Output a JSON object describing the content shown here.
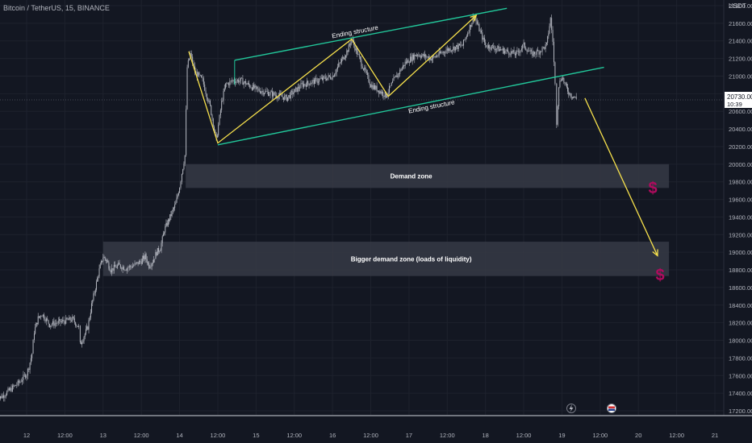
{
  "header": {
    "symbol": "Bitcoin / TetherUS, 15, BINANCE"
  },
  "chart_data": {
    "type": "candlestick",
    "currency": "USDT",
    "ylim": [
      17150,
      22000
    ],
    "y_ticks": [
      17200,
      17400,
      17600,
      17800,
      18000,
      18200,
      18400,
      18600,
      18800,
      19000,
      19200,
      19400,
      19600,
      19800,
      20000,
      20200,
      20400,
      20600,
      20800,
      21000,
      21200,
      21400,
      21600,
      21800
    ],
    "x_tick_labels": [
      "12",
      "12:00",
      "13",
      "12:00",
      "14",
      "12:00",
      "15",
      "12:00",
      "16",
      "12:00",
      "17",
      "12:00",
      "18",
      "12:00",
      "19",
      "12:00",
      "20",
      "12:00",
      "21"
    ],
    "x_range_days": [
      11.6,
      21.1
    ],
    "price_label": {
      "value": "20730.00",
      "countdown": "10:39"
    },
    "last_price": 20730,
    "price_path": [
      [
        11.6,
        17320
      ],
      [
        11.7,
        17380
      ],
      [
        11.8,
        17450
      ],
      [
        11.9,
        17520
      ],
      [
        12.0,
        17620
      ],
      [
        12.03,
        17700
      ],
      [
        12.07,
        17850
      ],
      [
        12.1,
        18100
      ],
      [
        12.15,
        18250
      ],
      [
        12.2,
        18300
      ],
      [
        12.3,
        18180
      ],
      [
        12.4,
        18200
      ],
      [
        12.5,
        18220
      ],
      [
        12.6,
        18240
      ],
      [
        12.68,
        18150
      ],
      [
        12.7,
        17950
      ],
      [
        12.75,
        18050
      ],
      [
        12.8,
        18150
      ],
      [
        12.85,
        18400
      ],
      [
        12.9,
        18600
      ],
      [
        12.95,
        18800
      ],
      [
        13.0,
        18950
      ],
      [
        13.05,
        18900
      ],
      [
        13.1,
        18800
      ],
      [
        13.2,
        18850
      ],
      [
        13.3,
        18820
      ],
      [
        13.4,
        18850
      ],
      [
        13.5,
        18900
      ],
      [
        13.55,
        18950
      ],
      [
        13.6,
        18850
      ],
      [
        13.65,
        18900
      ],
      [
        13.7,
        19000
      ],
      [
        13.75,
        19050
      ],
      [
        13.8,
        19250
      ],
      [
        13.85,
        19350
      ],
      [
        13.9,
        19450
      ],
      [
        13.95,
        19550
      ],
      [
        14.0,
        19750
      ],
      [
        14.03,
        19900
      ],
      [
        14.07,
        20100
      ],
      [
        14.1,
        21100
      ],
      [
        14.14,
        21250
      ],
      [
        14.2,
        21050
      ],
      [
        14.3,
        20950
      ],
      [
        14.4,
        20650
      ],
      [
        14.48,
        20270
      ],
      [
        14.55,
        20700
      ],
      [
        14.6,
        20900
      ],
      [
        14.7,
        20950
      ],
      [
        14.8,
        20950
      ],
      [
        15.0,
        20850
      ],
      [
        15.2,
        20800
      ],
      [
        15.4,
        20750
      ],
      [
        15.6,
        20900
      ],
      [
        15.8,
        20950
      ],
      [
        16.0,
        21000
      ],
      [
        16.2,
        21300
      ],
      [
        16.25,
        21420
      ],
      [
        16.35,
        21200
      ],
      [
        16.5,
        20900
      ],
      [
        16.7,
        20780
      ],
      [
        16.8,
        20950
      ],
      [
        16.95,
        21150
      ],
      [
        17.1,
        21250
      ],
      [
        17.3,
        21200
      ],
      [
        17.5,
        21300
      ],
      [
        17.7,
        21350
      ],
      [
        17.85,
        21680
      ],
      [
        18.0,
        21350
      ],
      [
        18.2,
        21300
      ],
      [
        18.4,
        21250
      ],
      [
        18.5,
        21350
      ],
      [
        18.6,
        21250
      ],
      [
        18.7,
        21280
      ],
      [
        18.8,
        21350
      ],
      [
        18.85,
        21650
      ],
      [
        18.88,
        21400
      ],
      [
        18.91,
        20900
      ],
      [
        18.93,
        20480
      ],
      [
        18.96,
        20900
      ],
      [
        19.0,
        21000
      ],
      [
        19.05,
        20880
      ],
      [
        19.1,
        20800
      ],
      [
        19.15,
        20770
      ],
      [
        19.2,
        20730
      ]
    ],
    "zones": [
      {
        "label": "Demand zone",
        "y_low": 19730,
        "y_high": 20000,
        "x_start": 14.08,
        "x_end": 20.4
      },
      {
        "label": "Bigger demand zone (loads of liquidity)",
        "y_low": 18730,
        "y_high": 19120,
        "x_start": 13.0,
        "x_end": 20.4
      }
    ],
    "channel_lines": [
      {
        "label": "Ending structure",
        "from": [
          14.72,
          21180
        ],
        "to": [
          18.28,
          21770
        ],
        "label_at": [
          16.3,
          21480
        ]
      },
      {
        "label": "Ending structure",
        "from": [
          14.5,
          20220
        ],
        "to": [
          19.55,
          21100
        ],
        "label_at": [
          17.3,
          20630
        ]
      }
    ],
    "zigzag": [
      [
        14.12,
        21280
      ],
      [
        14.5,
        20240
      ],
      [
        16.25,
        21420
      ],
      [
        16.73,
        20770
      ],
      [
        17.88,
        21690
      ]
    ],
    "projection_arrow": {
      "from": [
        19.3,
        20750
      ],
      "to": [
        20.25,
        18960
      ]
    },
    "colors": {
      "background": "#131722",
      "candles": "#b2b5be",
      "channel": "#22c79a",
      "zigzag": "#f7e14c",
      "zone": "#363a45",
      "dollar": "#b00b5e",
      "axis_text": "#b2b5be"
    },
    "icons": [
      "dollar-icon",
      "dollar-icon",
      "lightning-icon",
      "flag-icon"
    ]
  }
}
